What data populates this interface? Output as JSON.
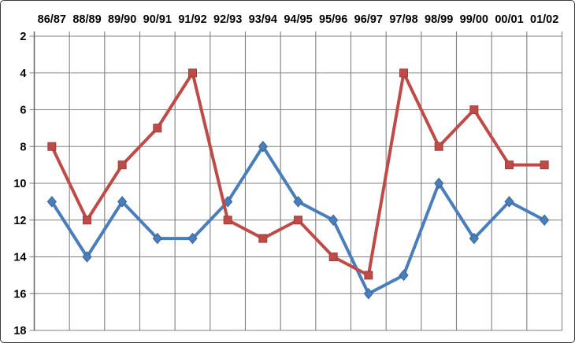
{
  "chart_data": {
    "type": "line",
    "title": "",
    "xlabel": "",
    "ylabel": "",
    "categories": [
      "86/87",
      "88/89",
      "89/90",
      "90/91",
      "91/92",
      "92/93",
      "93/94",
      "94/95",
      "95/96",
      "96/97",
      "97/98",
      "98/99",
      "99/00",
      "00/01",
      "01/02"
    ],
    "series": [
      {
        "name": "blue-diamond-series",
        "marker": "diamond",
        "color": "#4A7EBB",
        "marker_border": "#3A669C",
        "values": [
          11,
          14,
          11,
          13,
          13,
          11,
          8,
          11,
          12,
          16,
          15,
          10,
          13,
          11,
          12
        ]
      },
      {
        "name": "red-square-series",
        "marker": "square",
        "color": "#BE4B48",
        "marker_border": "#9E3E3B",
        "values": [
          8,
          12,
          9,
          7,
          4,
          12,
          13,
          12,
          14,
          15,
          4,
          8,
          6,
          9,
          9
        ]
      }
    ],
    "y_axis": {
      "min": 2,
      "max": 18,
      "step": 2,
      "reversed": true,
      "tick_labels": [
        "2",
        "4",
        "6",
        "8",
        "10",
        "12",
        "14",
        "16",
        "18"
      ]
    },
    "x_axis": {
      "position": "top"
    },
    "grid": true,
    "legend": "none",
    "colors": {
      "gridline": "#808080",
      "axis": "#666666",
      "label": "#000000",
      "background": "#FFFFFF",
      "frame_border": "#3C3C3C"
    }
  }
}
